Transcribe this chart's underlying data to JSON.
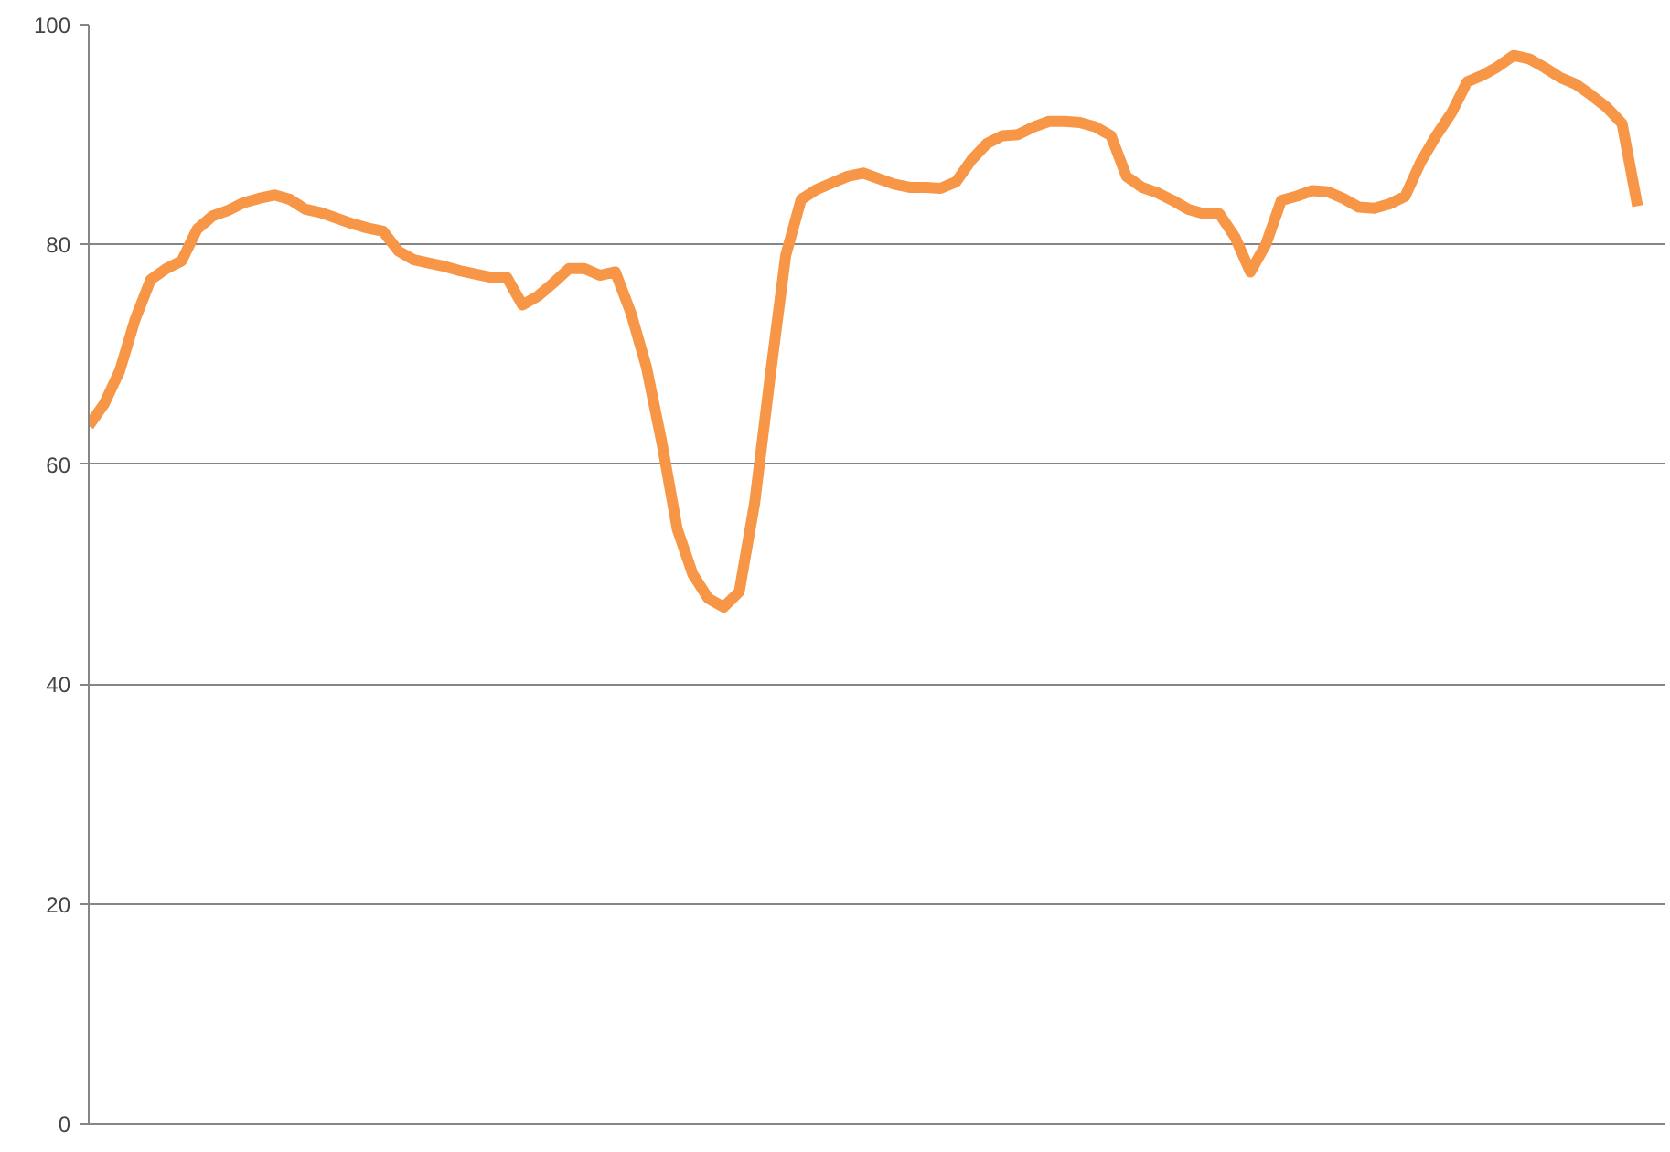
{
  "chart_data": {
    "type": "line",
    "categories": [
      null,
      null,
      null,
      null,
      null,
      null,
      null,
      null,
      null,
      null,
      null,
      null,
      null,
      null,
      null,
      null,
      null,
      null,
      null,
      null,
      null,
      null,
      null,
      null,
      null,
      null,
      null,
      null,
      null,
      null,
      null,
      null,
      null,
      null,
      null,
      null,
      null,
      null,
      null,
      null,
      null,
      null,
      null,
      null,
      null,
      null,
      null,
      null,
      null,
      null,
      null,
      null,
      null,
      null,
      null,
      null,
      null,
      null,
      null,
      null,
      null,
      null,
      null,
      null,
      null,
      null,
      null,
      null,
      null,
      null,
      null,
      null,
      null,
      null,
      null,
      null,
      null,
      null,
      null,
      null,
      null,
      null,
      null,
      null,
      null,
      null,
      null,
      null,
      null,
      null,
      null,
      null,
      null,
      null,
      null,
      null,
      null,
      null,
      null,
      null,
      null
    ],
    "series": [
      {
        "color": "#f79646",
        "values": [
          63.5,
          65.5,
          68.5,
          73.2,
          76.8,
          77.8,
          78.5,
          81.4,
          82.6,
          83.1,
          83.8,
          84.2,
          84.5,
          84.1,
          83.2,
          82.9,
          82.4,
          81.9,
          81.5,
          81.2,
          79.4,
          78.6,
          78.3,
          78.0,
          77.6,
          77.3,
          77.0,
          77.0,
          74.5,
          75.3,
          76.5,
          77.8,
          77.8,
          77.2,
          77.5,
          73.8,
          68.9,
          62.0,
          54.1,
          50.0,
          47.8,
          47.0,
          48.4,
          56.5,
          68.0,
          79.0,
          84.1,
          85.0,
          85.6,
          86.2,
          86.5,
          86.0,
          85.5,
          85.2,
          85.2,
          85.1,
          85.7,
          87.7,
          89.2,
          89.9,
          90.0,
          90.7,
          91.2,
          91.2,
          91.1,
          90.7,
          89.9,
          86.2,
          85.2,
          84.7,
          84.0,
          83.2,
          82.8,
          82.8,
          80.7,
          77.5,
          80.0,
          84.0,
          84.4,
          84.9,
          84.8,
          84.2,
          83.4,
          83.3,
          83.7,
          84.4,
          87.5,
          89.9,
          92.0,
          94.8,
          95.4,
          96.2,
          97.2,
          96.9,
          96.1,
          95.2,
          94.6,
          93.6,
          92.5,
          91.0,
          83.5
        ]
      }
    ],
    "ylim": [
      0,
      100
    ],
    "yticks": [
      0,
      20,
      40,
      60,
      80,
      100
    ],
    "grid": "y",
    "tick_labels": "y",
    "marker": "none",
    "line_style": "solid"
  }
}
